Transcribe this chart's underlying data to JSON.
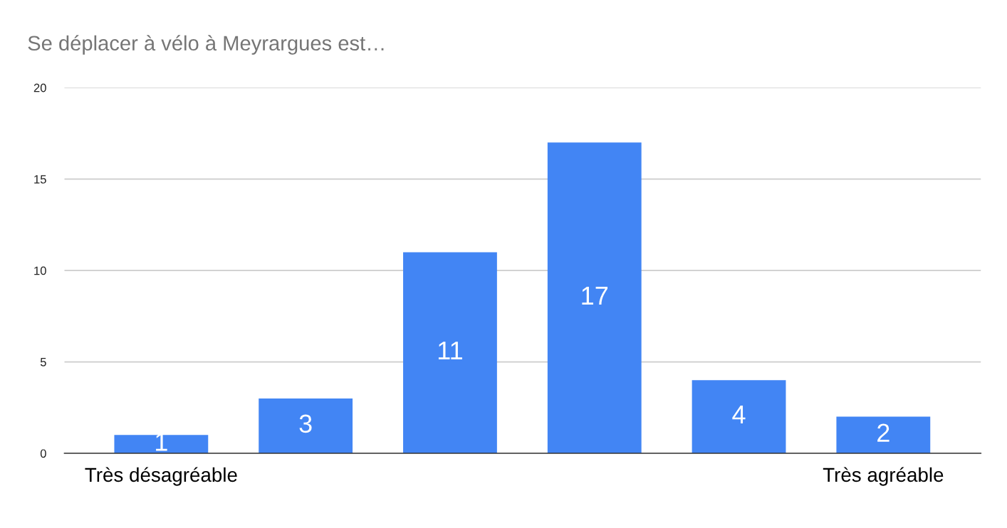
{
  "chart_data": {
    "type": "bar",
    "title": "Se déplacer à vélo à Meyrargues est…",
    "categories": [
      "Très désagréable",
      null,
      null,
      null,
      null,
      "Très agréable"
    ],
    "values": [
      1,
      3,
      11,
      17,
      4,
      2
    ],
    "color": "#4285f4",
    "ylim": [
      0,
      20
    ],
    "yticks": [
      0,
      5,
      10,
      15,
      20
    ],
    "grid": "y",
    "data_labels": true
  }
}
